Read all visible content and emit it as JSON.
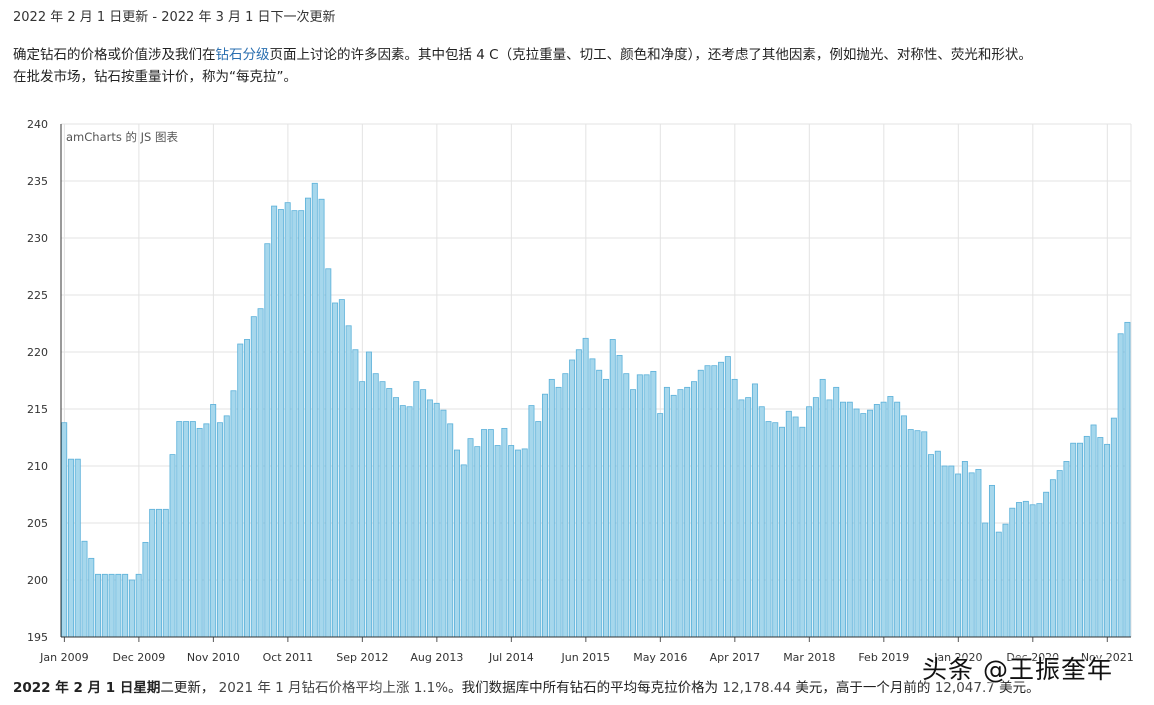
{
  "header": {
    "update_line": "2022 年 2 月 1 日更新 - 2022 年 3 月 1 日下一次更新"
  },
  "intro": {
    "part1": "确定钻石的价格或价值涉及我们在",
    "link_text": "钻石分级",
    "part2": "页面上讨论的许多因素。其中包括 4 C（克拉重量、切工、颜色和净度），还考虑了其他因素，例如抛光、对称性、荧光和形状。",
    "line2": "在批发市场，钻石按重量计价，称为“每克拉”。"
  },
  "chart_data": {
    "type": "bar",
    "credit": "amCharts 的 JS 图表",
    "ylim": [
      195,
      240
    ],
    "y_ticks": [
      "195",
      "200",
      "205",
      "210",
      "215",
      "220",
      "225",
      "230",
      "235",
      "240"
    ],
    "x_tick_labels": [
      "Jan 2009",
      "Dec 2009",
      "Nov 2010",
      "Oct 2011",
      "Sep 2012",
      "Aug 2013",
      "Jul 2014",
      "Jun 2015",
      "May 2016",
      "Apr 2017",
      "Mar 2018",
      "Feb 2019",
      "Jan 2020",
      "Dec 2020",
      "Nov 2021"
    ],
    "grid": true,
    "bar_fill": "#a6d7ec",
    "bar_stroke": "#5ab0d9",
    "values": [
      213.8,
      210.6,
      210.6,
      203.4,
      201.9,
      200.5,
      200.5,
      200.5,
      200.5,
      200.5,
      200.0,
      200.5,
      203.3,
      206.2,
      206.2,
      206.2,
      211.0,
      213.9,
      213.9,
      213.9,
      213.3,
      213.7,
      215.4,
      213.8,
      214.4,
      216.6,
      220.7,
      221.1,
      223.1,
      223.8,
      229.5,
      232.8,
      232.5,
      233.1,
      232.4,
      232.4,
      233.5,
      234.8,
      233.4,
      227.3,
      224.3,
      224.6,
      222.3,
      220.2,
      217.4,
      220.0,
      218.1,
      217.4,
      216.8,
      216.0,
      215.3,
      215.2,
      217.4,
      216.7,
      215.8,
      215.5,
      214.9,
      213.7,
      211.4,
      210.1,
      212.4,
      211.7,
      213.2,
      213.2,
      211.8,
      213.3,
      211.8,
      211.4,
      211.5,
      215.3,
      213.9,
      216.3,
      217.6,
      216.9,
      218.1,
      219.3,
      220.2,
      221.2,
      219.4,
      218.4,
      217.6,
      221.1,
      219.7,
      218.1,
      216.7,
      218.0,
      218.0,
      218.3,
      214.6,
      216.9,
      216.2,
      216.7,
      216.9,
      217.4,
      218.4,
      218.8,
      218.8,
      219.1,
      219.6,
      217.6,
      215.8,
      216.0,
      217.2,
      215.2,
      213.9,
      213.8,
      213.4,
      214.8,
      214.3,
      213.4,
      215.2,
      216.0,
      217.6,
      215.8,
      216.9,
      215.6,
      215.6,
      215.0,
      214.6,
      214.9,
      215.4,
      215.6,
      216.1,
      215.6,
      214.4,
      213.2,
      213.1,
      213.0,
      211.0,
      211.3,
      210.0,
      210.0,
      209.3,
      210.4,
      209.4,
      209.7,
      205.0,
      208.3,
      204.2,
      204.9,
      206.3,
      206.8,
      206.9,
      206.6,
      206.7,
      207.7,
      208.8,
      209.6,
      210.4,
      212.0,
      212.0,
      212.6,
      213.6,
      212.5,
      211.9,
      214.2,
      221.6,
      222.6
    ]
  },
  "footer": {
    "date_bold": "2022 年 2 月 1 日星期",
    "date_rest": "二更新，",
    "text1": "2021 年 1 月钻石价格平均上涨",
    "pct": "1.1%",
    "text2": "。我们数据库中所有钻石的平均每克拉价格为",
    "price": "12,178.44",
    "text3": "美元，高于一个月前的",
    "prev_price": "12,047.7",
    "text4": "美元。"
  },
  "watermark": "头条 @王振奎年"
}
